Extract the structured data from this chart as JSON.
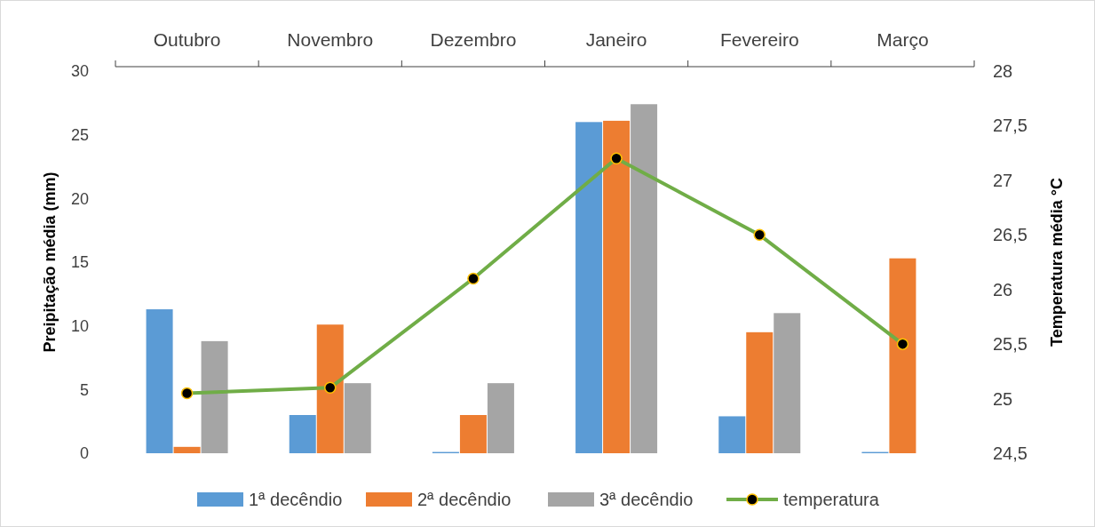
{
  "chart_data": {
    "type": "bar",
    "xlabel": null,
    "ylabel": "Preipitação média (mm)",
    "y2label": "Temperatura média °C",
    "categories": [
      "Outubro",
      "Novembro",
      "Dezembro",
      "Janeiro",
      "Fevereiro",
      "Março"
    ],
    "series": [
      {
        "name": "1ª decêndio",
        "color": "#5b9bd5",
        "values": [
          11.3,
          3.0,
          0.1,
          26.0,
          2.9,
          0.1
        ]
      },
      {
        "name": "2ª decêndio",
        "color": "#ed7d31",
        "values": [
          0.5,
          10.1,
          3.0,
          26.1,
          9.5,
          15.3
        ]
      },
      {
        "name": "3ª decêndio",
        "color": "#a5a5a5",
        "values": [
          8.8,
          5.5,
          5.5,
          27.4,
          11.0,
          0
        ]
      },
      {
        "name": "temperatura",
        "type": "line",
        "axis": "y2",
        "color": "#70ad47",
        "marker": "circle",
        "values": [
          25.05,
          25.1,
          26.1,
          27.2,
          26.5,
          25.5
        ]
      }
    ],
    "ylim": [
      0,
      30
    ],
    "yticks": [
      0,
      5,
      10,
      15,
      20,
      25,
      30
    ],
    "y2lim": [
      24.5,
      28
    ],
    "y2ticks": [
      {
        "value": 24.5,
        "label": "24,5"
      },
      25,
      {
        "value": 25.5,
        "label": "25,5"
      },
      26,
      {
        "value": 26.5,
        "label": "26,5"
      },
      27,
      {
        "value": 27.5,
        "label": "27,5"
      },
      28
    ],
    "grid": false,
    "legend": "bottom"
  }
}
